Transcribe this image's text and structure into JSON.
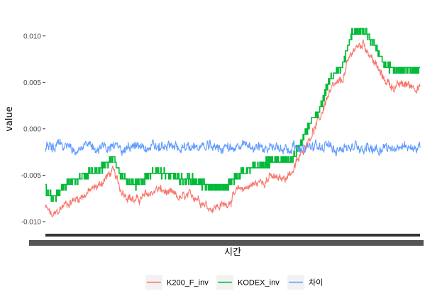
{
  "chart_data": {
    "type": "line",
    "xlabel": "시간",
    "ylabel": "value",
    "ylim": [
      -0.0113,
      0.0125
    ],
    "yticks": [
      -0.01,
      -0.005,
      0.0,
      0.005,
      0.01
    ],
    "ytick_labels": [
      "-0.010",
      "-0.005",
      "0.000",
      "0.005",
      "0.010"
    ],
    "x_ticks_visible": false,
    "x_tick_labels_overplotted": true,
    "grid": false,
    "legend_position": "bottom",
    "series": [
      {
        "name": "K200_F_inv",
        "color": "#F8766D",
        "style": "noisy",
        "noise": 0.0006,
        "x": [
          0,
          0.02,
          0.05,
          0.1,
          0.14,
          0.18,
          0.2,
          0.24,
          0.3,
          0.36,
          0.4,
          0.44,
          0.48,
          0.52,
          0.57,
          0.6,
          0.63,
          0.66,
          0.68,
          0.7,
          0.73,
          0.75,
          0.77,
          0.79,
          0.82,
          0.85,
          0.88,
          0.9,
          0.93,
          0.96,
          1.0
        ],
        "y": [
          -0.0085,
          -0.0095,
          -0.0082,
          -0.0072,
          -0.0062,
          -0.0045,
          -0.0065,
          -0.0078,
          -0.0065,
          -0.0075,
          -0.0072,
          -0.0085,
          -0.0082,
          -0.0065,
          -0.0058,
          -0.0052,
          -0.0055,
          -0.0045,
          -0.003,
          -0.0012,
          0.0008,
          0.0032,
          0.0045,
          0.005,
          0.0085,
          0.0092,
          0.007,
          0.0055,
          0.0045,
          0.0048,
          0.0045
        ]
      },
      {
        "name": "KODEX_inv",
        "color": "#00BA38",
        "style": "step",
        "x": [
          0,
          0.02,
          0.05,
          0.1,
          0.14,
          0.18,
          0.2,
          0.24,
          0.3,
          0.36,
          0.4,
          0.44,
          0.48,
          0.52,
          0.57,
          0.6,
          0.63,
          0.66,
          0.68,
          0.7,
          0.73,
          0.75,
          0.77,
          0.79,
          0.82,
          0.85,
          0.88,
          0.9,
          0.93,
          0.96,
          1.0
        ],
        "y": [
          -0.0065,
          -0.0075,
          -0.0062,
          -0.005,
          -0.0045,
          -0.0032,
          -0.005,
          -0.006,
          -0.0045,
          -0.0055,
          -0.0055,
          -0.0065,
          -0.0062,
          -0.0048,
          -0.004,
          -0.0035,
          -0.0035,
          -0.0032,
          -0.0018,
          0.0,
          0.0018,
          0.0045,
          0.006,
          0.0065,
          0.0105,
          0.0105,
          0.009,
          0.0072,
          0.0062,
          0.0065,
          0.0062
        ]
      },
      {
        "name": "차이",
        "color": "#619CFF",
        "style": "noisy",
        "noise": 0.0007,
        "x": [
          0,
          0.5,
          1.0
        ],
        "y": [
          -0.002,
          -0.002,
          -0.002
        ]
      }
    ]
  }
}
